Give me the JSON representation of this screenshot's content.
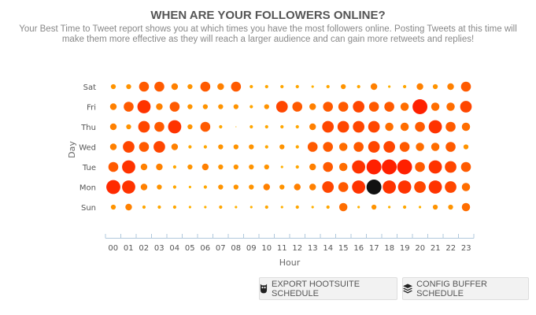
{
  "header": {
    "title": "WHEN ARE YOUR FOLLOWERS ONLINE?",
    "subtitle": "Your Best Time to Tweet report shows you at which times you have the most followers online. Posting Tweets at this time will make them more effective as they will reach a larger audience and can gain more retweets and replies!"
  },
  "chart_data": {
    "type": "scatter",
    "subtype": "punch-card",
    "xlabel": "Hour",
    "ylabel": "Day",
    "x_categories": [
      "00",
      "01",
      "02",
      "03",
      "04",
      "05",
      "06",
      "07",
      "08",
      "09",
      "10",
      "11",
      "12",
      "13",
      "14",
      "15",
      "16",
      "17",
      "18",
      "19",
      "20",
      "21",
      "22",
      "23"
    ],
    "y_categories": [
      "Sat",
      "Fri",
      "Thu",
      "Wed",
      "Tue",
      "Mon",
      "Sun"
    ],
    "value_scale": "relative 0-10 (bubble size)",
    "values": {
      "Sat": [
        3,
        3,
        6,
        6,
        4,
        3,
        6,
        4,
        6,
        2,
        2,
        2,
        2,
        1.5,
        2,
        3,
        2,
        4,
        1.5,
        2,
        4,
        3,
        4,
        6
      ],
      "Fri": [
        4,
        6,
        8,
        4,
        6,
        3,
        3,
        3,
        3,
        2,
        3,
        7,
        6,
        4,
        6,
        6,
        7,
        6,
        6,
        5,
        9,
        5,
        5,
        7
      ],
      "Thu": [
        4,
        3,
        7,
        6,
        8,
        3,
        6,
        2,
        0.5,
        2,
        2,
        2,
        2,
        4,
        7,
        7,
        7,
        7,
        5,
        5,
        6,
        8,
        6,
        5
      ],
      "Wed": [
        4,
        7,
        6,
        7,
        4,
        2,
        2,
        3,
        3,
        3,
        2,
        3,
        2,
        6,
        6,
        5,
        6,
        7,
        7,
        6,
        5,
        5,
        6,
        3
      ],
      "Tue": [
        6,
        8,
        4,
        4,
        2,
        3,
        4,
        3,
        3,
        3,
        3,
        1.5,
        2,
        4,
        6,
        5,
        8,
        9,
        9,
        9,
        6,
        8,
        7,
        6
      ],
      "Mon": [
        8.5,
        8,
        4,
        3,
        2,
        1.5,
        2,
        3,
        3,
        3,
        4,
        3,
        4,
        4,
        7,
        6,
        8,
        9,
        8,
        8,
        7,
        8,
        7,
        5
      ],
      "Sun": [
        3,
        4,
        2,
        2,
        2,
        1.5,
        1.5,
        2,
        1.5,
        1.5,
        2,
        1.5,
        2,
        1.5,
        2,
        5,
        1.5,
        3,
        1.5,
        2,
        1.5,
        3,
        3,
        5
      ]
    },
    "highlight": {
      "day": "Mon",
      "hour": "17",
      "color": "#111111"
    },
    "colors": {
      "low": "#ffb000",
      "high": "#ff2000",
      "axis": "#b0c8dc"
    },
    "grid": false,
    "legend": "none"
  },
  "buttons": {
    "export_hootsuite": "EXPORT HOOTSUITE SCHEDULE",
    "config_buffer": "CONFIG BUFFER SCHEDULE"
  }
}
